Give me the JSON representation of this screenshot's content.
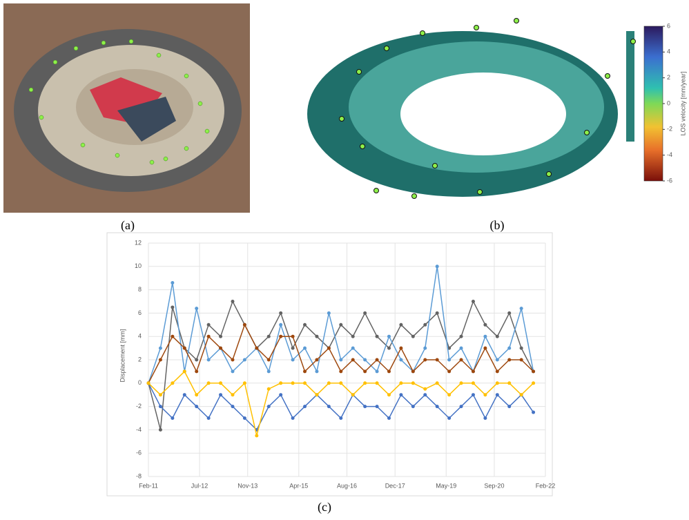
{
  "panel_labels": [
    "(a)",
    "(b)",
    "(c)"
  ],
  "colorbar": {
    "label": "LOS velocity [mm/year]",
    "lim": [
      -6,
      6
    ],
    "ticks": [
      6,
      4,
      2,
      0,
      -2,
      -4,
      -6
    ]
  },
  "chart_data": {
    "type": "line",
    "ylabel": "Displacement [mm]",
    "grid": true,
    "ylim": [
      -8,
      12
    ],
    "yticks": [
      -8,
      -6,
      -4,
      -2,
      0,
      2,
      4,
      6,
      8,
      10,
      12
    ],
    "xlim": [
      "2011-02",
      "2022-02"
    ],
    "xticks": [
      {
        "value": "2011-02",
        "label": "Feb-11"
      },
      {
        "value": "2012-07",
        "label": "Jul-12"
      },
      {
        "value": "2013-11",
        "label": "Nov-13"
      },
      {
        "value": "2015-04",
        "label": "Apr-15"
      },
      {
        "value": "2016-08",
        "label": "Aug-16"
      },
      {
        "value": "2017-12",
        "label": "Dec-17"
      },
      {
        "value": "2019-05",
        "label": "May-19"
      },
      {
        "value": "2020-09",
        "label": "Sep-20"
      },
      {
        "value": "2022-02",
        "label": "Feb-22"
      }
    ],
    "x": [
      "2011-02",
      "2011-06",
      "2011-10",
      "2012-02",
      "2012-06",
      "2012-10",
      "2013-02",
      "2013-06",
      "2013-10",
      "2014-02",
      "2014-06",
      "2014-10",
      "2015-02",
      "2015-06",
      "2015-10",
      "2016-02",
      "2016-06",
      "2016-10",
      "2017-02",
      "2017-06",
      "2017-10",
      "2018-02",
      "2018-06",
      "2018-10",
      "2019-02",
      "2019-06",
      "2019-10",
      "2020-02",
      "2020-06",
      "2020-10",
      "2021-02",
      "2021-06",
      "2021-10"
    ],
    "series": [
      {
        "color": "#636363",
        "values": [
          0,
          -4,
          6.5,
          3,
          2,
          5,
          4,
          7,
          5,
          3,
          4,
          6,
          3,
          5,
          4,
          3,
          5,
          4,
          6,
          4,
          3,
          5,
          4,
          5,
          6,
          3,
          4,
          7,
          5,
          4,
          6,
          3,
          1
        ]
      },
      {
        "color": "#4472c4",
        "values": [
          0,
          -2,
          -3,
          -1,
          -2,
          -3,
          -1,
          -2,
          -3,
          -4,
          -2,
          -1,
          -3,
          -2,
          -1,
          -2,
          -3,
          -1,
          -2,
          -2,
          -3,
          -1,
          -2,
          -1,
          -2,
          -3,
          -2,
          -1,
          -3,
          -1,
          -2,
          -1,
          -2.5
        ]
      },
      {
        "color": "#5b9bd5",
        "values": [
          0,
          3,
          8.6,
          1,
          6.4,
          2,
          3,
          1,
          2,
          3,
          1,
          5,
          2,
          3,
          1,
          6,
          2,
          3,
          2,
          1,
          4,
          2,
          1,
          3,
          10,
          2,
          3,
          1,
          4,
          2,
          3,
          6.4,
          1
        ]
      },
      {
        "color": "#9e480e",
        "values": [
          0,
          2,
          4,
          3,
          1,
          4,
          3,
          2,
          5,
          3,
          2,
          4,
          4,
          1,
          2,
          3,
          1,
          2,
          1,
          2,
          1,
          3,
          1,
          2,
          2,
          1,
          2,
          1,
          3,
          1,
          2,
          2,
          1
        ]
      },
      {
        "color": "#ffc000",
        "values": [
          0,
          -1,
          0,
          1,
          -1,
          0,
          0,
          -1,
          0,
          -4.5,
          -0.5,
          0,
          0,
          0,
          -1,
          0,
          0,
          -1,
          0,
          0,
          -1,
          0,
          0,
          -0.5,
          0,
          -1,
          0,
          0,
          -1,
          0,
          0,
          -1,
          0
        ]
      }
    ]
  }
}
